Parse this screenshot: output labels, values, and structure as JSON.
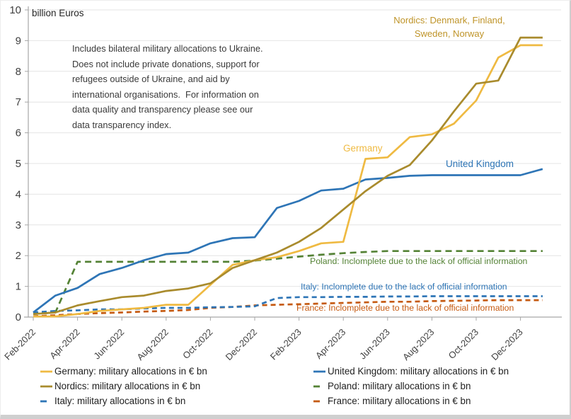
{
  "chart_data": {
    "type": "line",
    "unit_label": "billion Euros",
    "note": "Includes bilateral military allocations to Ukraine.\nDoes not include private donations, support for\nrefugees outside of Ukraine, and aid by\ninternational organisations.  For information on\ndata quality and transparency please see our\ndata transparency index.",
    "ylim": [
      0,
      10
    ],
    "y_ticks": [
      0,
      1,
      2,
      3,
      4,
      5,
      6,
      7,
      8,
      9,
      10
    ],
    "grid": true,
    "x_tick_labels": [
      "Feb-2022",
      "Apr-2022",
      "Jun-2022",
      "Aug-2022",
      "Oct-2022",
      "Dec-2022",
      "Feb-2023",
      "Apr-2023",
      "Jun-2023",
      "Aug-2023",
      "Oct-2023",
      "Dec-2023"
    ],
    "points_start": "Feb-2022",
    "points_interval": "1 month",
    "series": [
      {
        "key": "france",
        "name": "France",
        "color": "#C55A11",
        "dash": "7 5",
        "values": [
          0.03,
          0.06,
          0.1,
          0.13,
          0.15,
          0.18,
          0.2,
          0.23,
          0.3,
          0.33,
          0.38,
          0.4,
          0.42,
          0.44,
          0.46,
          0.48,
          0.5,
          0.5,
          0.52,
          0.53,
          0.54,
          0.55,
          0.55,
          0.55
        ]
      },
      {
        "key": "italy",
        "name": "Italy",
        "color": "#2E75B6",
        "dash": "7 5",
        "values": [
          0.15,
          0.2,
          0.22,
          0.25,
          0.25,
          0.28,
          0.3,
          0.3,
          0.32,
          0.33,
          0.35,
          0.62,
          0.65,
          0.65,
          0.66,
          0.66,
          0.67,
          0.67,
          0.68,
          0.68,
          0.68,
          0.68,
          0.68,
          0.68
        ]
      },
      {
        "key": "poland",
        "name": "Poland",
        "color": "#548235",
        "dash": "9 6",
        "values": [
          0.1,
          0.15,
          1.8,
          1.8,
          1.8,
          1.8,
          1.8,
          1.8,
          1.8,
          1.8,
          1.84,
          1.9,
          1.97,
          2.03,
          2.08,
          2.12,
          2.15,
          2.15,
          2.15,
          2.15,
          2.15,
          2.15,
          2.15,
          2.15
        ]
      },
      {
        "key": "uk",
        "name": "United Kingdom",
        "color": "#2E75B6",
        "dash": "",
        "values": [
          0.15,
          0.7,
          0.95,
          1.4,
          1.6,
          1.85,
          2.05,
          2.1,
          2.4,
          2.57,
          2.6,
          3.55,
          3.78,
          4.12,
          4.18,
          4.48,
          4.53,
          4.6,
          4.62,
          4.62,
          4.62,
          4.62,
          4.62,
          4.82
        ]
      },
      {
        "key": "germany",
        "name": "Germany",
        "color": "#EFBA42",
        "dash": "",
        "values": [
          0.02,
          0.02,
          0.1,
          0.2,
          0.25,
          0.3,
          0.4,
          0.4,
          1.05,
          1.7,
          1.85,
          1.95,
          2.15,
          2.4,
          2.45,
          5.15,
          5.2,
          5.86,
          5.95,
          6.3,
          7.05,
          8.45,
          8.85,
          8.85
        ]
      },
      {
        "key": "nordics",
        "name": "Nordics",
        "color": "#A98B2D",
        "dash": "",
        "values": [
          0.1,
          0.15,
          0.38,
          0.52,
          0.65,
          0.7,
          0.85,
          0.93,
          1.1,
          1.6,
          1.85,
          2.1,
          2.45,
          2.9,
          3.5,
          4.1,
          4.6,
          4.95,
          5.75,
          6.7,
          7.6,
          7.7,
          9.1,
          9.1
        ]
      }
    ],
    "annotations": {
      "nordics_label": {
        "text": "Nordics: Denmark, Finland,\nSweden, Norway",
        "color": "#BF9429"
      },
      "germany_label": {
        "text": "Germany",
        "color": "#EFBA42"
      },
      "uk_label": {
        "text": "United Kingdom",
        "color": "#2E75B6"
      },
      "poland_note": {
        "text": "Poland: Inclomplete due to the lack of official information",
        "color": "#548235"
      },
      "italy_note": {
        "text": "Italy: Inclomplete due to the lack of official information",
        "color": "#2E75B6"
      },
      "france_note": {
        "text": "France: Inclomplete due to the lack of official information",
        "color": "#C55A11"
      }
    },
    "axis_color": "#A6A6A6",
    "grid_color": "#E4E4E4",
    "tick_label_color": "#404040"
  },
  "legend": {
    "columns": [
      [
        {
          "key": "germany",
          "label": "Germany: military allocations in € bn"
        },
        {
          "key": "nordics",
          "label": "Nordics: military allocations in € bn"
        },
        {
          "key": "italy",
          "label": "Italy: military allocations in € bn"
        }
      ],
      [
        {
          "key": "uk",
          "label": "United Kingdom: military allocations in € bn"
        },
        {
          "key": "poland",
          "label": "Poland: military allocations in € bn"
        },
        {
          "key": "france",
          "label": "France: military allocations in € bn"
        }
      ]
    ]
  }
}
